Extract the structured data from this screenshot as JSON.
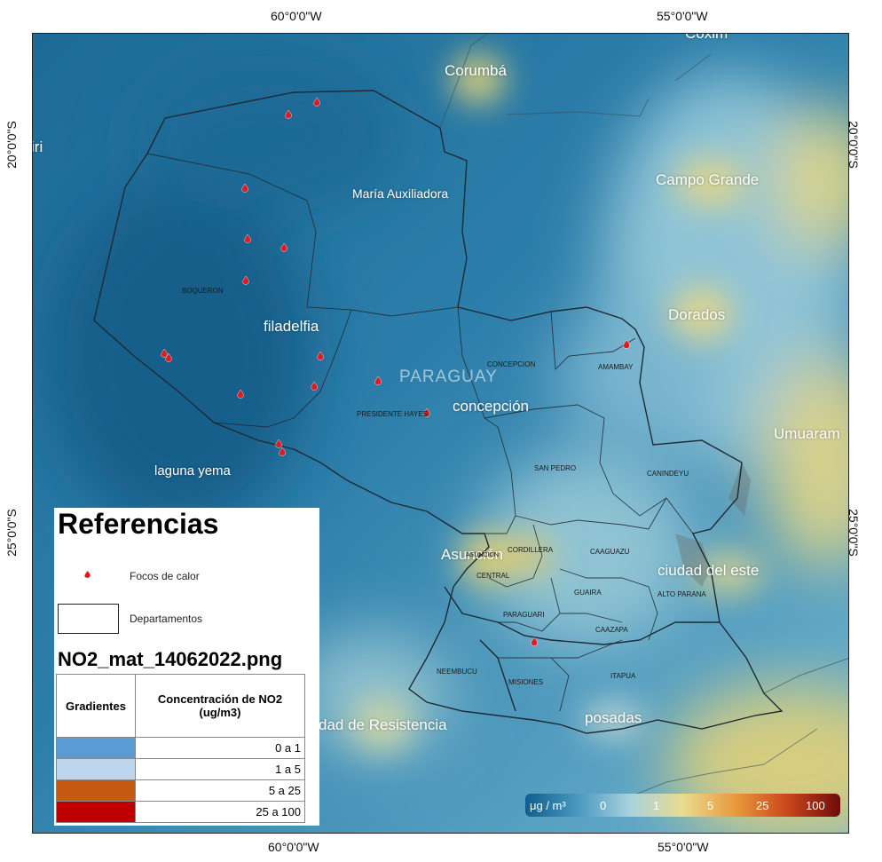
{
  "coords": {
    "top_left": "60°0'0\"W",
    "top_right": "55°0'0\"W",
    "bottom_left": "60°0'0\"W",
    "bottom_right": "55°0'0\"W",
    "left_upper": "20°0'0\"S",
    "left_lower": "25°0'0\"S",
    "right_upper": "20°0'0\"S",
    "right_lower": "25°0'0\"S"
  },
  "cities": [
    {
      "name": "Corumbá",
      "key": "corumba"
    },
    {
      "name": "Coxim",
      "key": "coxim"
    },
    {
      "name": "iri",
      "key": "iri"
    },
    {
      "name": "Campo Grande",
      "key": "campo-grande"
    },
    {
      "name": "María Auxiliadora",
      "key": "maria-auxiliadora"
    },
    {
      "name": "Dorados",
      "key": "dorados"
    },
    {
      "name": "filadelfia",
      "key": "filadelfia"
    },
    {
      "name": "PARAGUAY",
      "key": "paraguay"
    },
    {
      "name": "concepción",
      "key": "concepcion"
    },
    {
      "name": "Umuaram",
      "key": "umuaram"
    },
    {
      "name": "laguna yema",
      "key": "laguna-yema"
    },
    {
      "name": "Asunción",
      "key": "asuncion"
    },
    {
      "name": "ciudad del este",
      "key": "ciudad-del-este"
    },
    {
      "name": "dad de Resistencia",
      "key": "resistencia"
    },
    {
      "name": "posadas",
      "key": "posadas"
    }
  ],
  "departments": [
    "BOQUERON",
    "CONCEPCION",
    "AMAMBAY",
    "PRESIDENTE HAYES",
    "SAN PEDRO",
    "CANINDEYU",
    "CORDILLERA",
    "ASUNCION",
    "CAAGUAZU",
    "CENTRAL",
    "GUAIRA",
    "ALTO PARANA",
    "PARAGUARI",
    "CAAZAPA",
    "NEEMBUCU",
    "MISIONES",
    "ITAPUA"
  ],
  "legend": {
    "title": "Referencias",
    "fire_label": "Focos de calor",
    "dept_label": "Departamentos",
    "file_label": "NO2_mat_14062022.png",
    "col_gradient": "Gradientes",
    "col_conc": "Concentración de NO2 (ug/m3)",
    "rows": [
      {
        "label": "0 a 1",
        "color": "#5b9bd5"
      },
      {
        "label": "1 a 5",
        "color": "#bdd7ee"
      },
      {
        "label": "5 a 25",
        "color": "#c55a11"
      },
      {
        "label": "25 a 100",
        "color": "#c00000"
      }
    ]
  },
  "colorbar": {
    "unit": "μg / m³",
    "ticks": [
      "0",
      "1",
      "5",
      "25",
      "100"
    ],
    "colors": [
      "#0e5e8f",
      "#4a98c0",
      "#a9d2dd",
      "#e8dc8f",
      "#e79a3c",
      "#c9461a",
      "#6e0c0c"
    ]
  },
  "fire_count": 21
}
